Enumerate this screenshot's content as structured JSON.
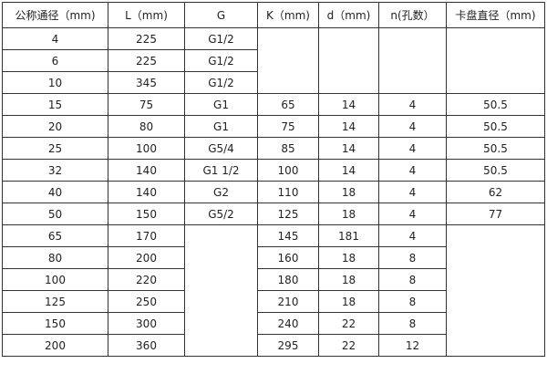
{
  "table": {
    "headers": [
      "公称通径（mm)",
      "L（mm)",
      "G",
      "K（mm)",
      "d（mm)",
      "n(孔数）",
      "卡盘直径（mm)"
    ],
    "rows": [
      [
        "4",
        "225",
        "G1/2",
        "",
        "",
        "",
        ""
      ],
      [
        "6",
        "225",
        "G1/2",
        "",
        "",
        "",
        ""
      ],
      [
        "10",
        "345",
        "G1/2",
        "",
        "",
        "",
        ""
      ],
      [
        "15",
        "75",
        "G1",
        "65",
        "14",
        "4",
        "50.5"
      ],
      [
        "20",
        "80",
        "G1",
        "75",
        "14",
        "4",
        "50.5"
      ],
      [
        "25",
        "100",
        "G5/4",
        "85",
        "14",
        "4",
        "50.5"
      ],
      [
        "32",
        "140",
        "G1  1/2",
        "100",
        "14",
        "4",
        "50.5"
      ],
      [
        "40",
        "140",
        "G2",
        "110",
        "18",
        "4",
        "62"
      ],
      [
        "50",
        "150",
        "G5/2",
        "125",
        "18",
        "4",
        "77"
      ],
      [
        "65",
        "170",
        "",
        "145",
        "181",
        "4",
        ""
      ],
      [
        "80",
        "200",
        "",
        "160",
        "18",
        "8",
        ""
      ],
      [
        "100",
        "220",
        "",
        "180",
        "18",
        "8",
        ""
      ],
      [
        "125",
        "250",
        "",
        "210",
        "18",
        "8",
        ""
      ],
      [
        "150",
        "300",
        "",
        "240",
        "22",
        "8",
        ""
      ],
      [
        "200",
        "360",
        "",
        "295",
        "22",
        "12",
        ""
      ]
    ]
  }
}
